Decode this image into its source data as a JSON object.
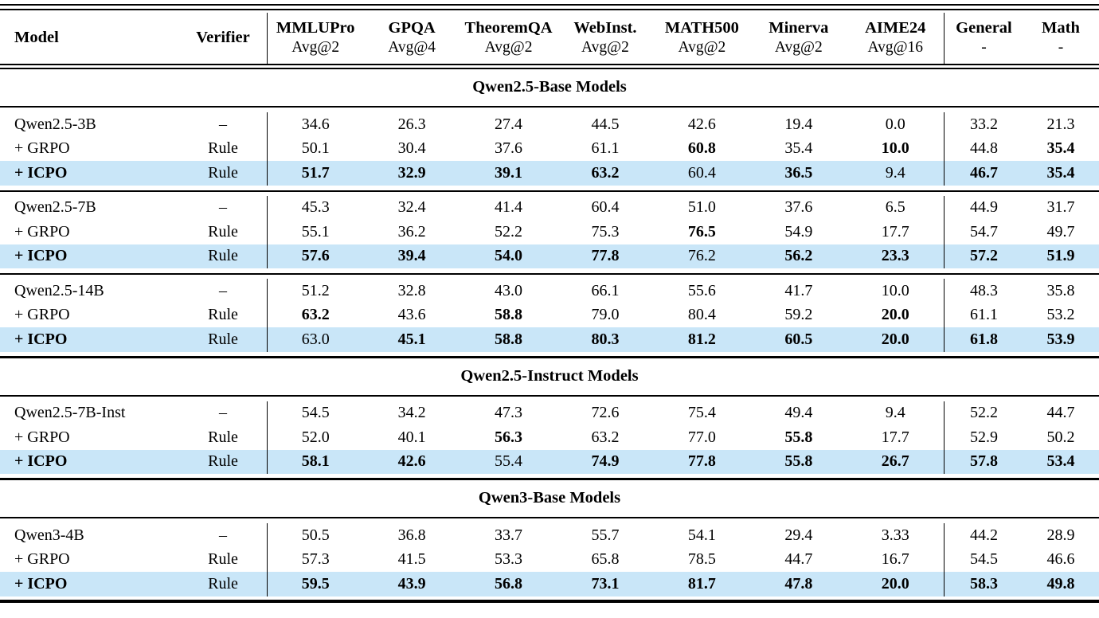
{
  "table": {
    "highlight_color": "#c9e6f8",
    "columns": [
      {
        "label": "Model",
        "sub": ""
      },
      {
        "label": "Verifier",
        "sub": ""
      },
      {
        "label": "MMLUPro",
        "sub": "Avg@2"
      },
      {
        "label": "GPQA",
        "sub": "Avg@4"
      },
      {
        "label": "TheoremQA",
        "sub": "Avg@2"
      },
      {
        "label": "WebInst.",
        "sub": "Avg@2"
      },
      {
        "label": "MATH500",
        "sub": "Avg@2"
      },
      {
        "label": "Minerva",
        "sub": "Avg@2"
      },
      {
        "label": "AIME24",
        "sub": "Avg@16"
      },
      {
        "label": "General",
        "sub": "-"
      },
      {
        "label": "Math",
        "sub": "-"
      }
    ],
    "sections": [
      {
        "title": "Qwen2.5-Base Models",
        "groups": [
          {
            "rows": [
              {
                "model": "Qwen2.5-3B",
                "model_bold": false,
                "verifier": "–",
                "highlight": false,
                "values": [
                  "34.6",
                  "26.3",
                  "27.4",
                  "44.5",
                  "42.6",
                  "19.4",
                  "0.0",
                  "33.2",
                  "21.3"
                ],
                "bold": [
                  0,
                  0,
                  0,
                  0,
                  0,
                  0,
                  0,
                  0,
                  0
                ]
              },
              {
                "model": "+ GRPO",
                "model_bold": false,
                "verifier": "Rule",
                "highlight": false,
                "values": [
                  "50.1",
                  "30.4",
                  "37.6",
                  "61.1",
                  "60.8",
                  "35.4",
                  "10.0",
                  "44.8",
                  "35.4"
                ],
                "bold": [
                  0,
                  0,
                  0,
                  0,
                  1,
                  0,
                  1,
                  0,
                  1
                ]
              },
              {
                "model": "+ ICPO",
                "model_bold": true,
                "verifier": "Rule",
                "highlight": true,
                "values": [
                  "51.7",
                  "32.9",
                  "39.1",
                  "63.2",
                  "60.4",
                  "36.5",
                  "9.4",
                  "46.7",
                  "35.4"
                ],
                "bold": [
                  1,
                  1,
                  1,
                  1,
                  0,
                  1,
                  0,
                  1,
                  1
                ]
              }
            ]
          },
          {
            "rows": [
              {
                "model": "Qwen2.5-7B",
                "model_bold": false,
                "verifier": "–",
                "highlight": false,
                "values": [
                  "45.3",
                  "32.4",
                  "41.4",
                  "60.4",
                  "51.0",
                  "37.6",
                  "6.5",
                  "44.9",
                  "31.7"
                ],
                "bold": [
                  0,
                  0,
                  0,
                  0,
                  0,
                  0,
                  0,
                  0,
                  0
                ]
              },
              {
                "model": "+ GRPO",
                "model_bold": false,
                "verifier": "Rule",
                "highlight": false,
                "values": [
                  "55.1",
                  "36.2",
                  "52.2",
                  "75.3",
                  "76.5",
                  "54.9",
                  "17.7",
                  "54.7",
                  "49.7"
                ],
                "bold": [
                  0,
                  0,
                  0,
                  0,
                  1,
                  0,
                  0,
                  0,
                  0
                ]
              },
              {
                "model": "+ ICPO",
                "model_bold": true,
                "verifier": "Rule",
                "highlight": true,
                "values": [
                  "57.6",
                  "39.4",
                  "54.0",
                  "77.8",
                  "76.2",
                  "56.2",
                  "23.3",
                  "57.2",
                  "51.9"
                ],
                "bold": [
                  1,
                  1,
                  1,
                  1,
                  0,
                  1,
                  1,
                  1,
                  1
                ]
              }
            ]
          },
          {
            "rows": [
              {
                "model": "Qwen2.5-14B",
                "model_bold": false,
                "verifier": "–",
                "highlight": false,
                "values": [
                  "51.2",
                  "32.8",
                  "43.0",
                  "66.1",
                  "55.6",
                  "41.7",
                  "10.0",
                  "48.3",
                  "35.8"
                ],
                "bold": [
                  0,
                  0,
                  0,
                  0,
                  0,
                  0,
                  0,
                  0,
                  0
                ]
              },
              {
                "model": "+ GRPO",
                "model_bold": false,
                "verifier": "Rule",
                "highlight": false,
                "values": [
                  "63.2",
                  "43.6",
                  "58.8",
                  "79.0",
                  "80.4",
                  "59.2",
                  "20.0",
                  "61.1",
                  "53.2"
                ],
                "bold": [
                  1,
                  0,
                  1,
                  0,
                  0,
                  0,
                  1,
                  0,
                  0
                ]
              },
              {
                "model": "+ ICPO",
                "model_bold": true,
                "verifier": "Rule",
                "highlight": true,
                "values": [
                  "63.0",
                  "45.1",
                  "58.8",
                  "80.3",
                  "81.2",
                  "60.5",
                  "20.0",
                  "61.8",
                  "53.9"
                ],
                "bold": [
                  0,
                  1,
                  1,
                  1,
                  1,
                  1,
                  1,
                  1,
                  1
                ]
              }
            ]
          }
        ]
      },
      {
        "title": "Qwen2.5-Instruct Models",
        "groups": [
          {
            "rows": [
              {
                "model": "Qwen2.5-7B-Inst",
                "model_bold": false,
                "verifier": "–",
                "highlight": false,
                "values": [
                  "54.5",
                  "34.2",
                  "47.3",
                  "72.6",
                  "75.4",
                  "49.4",
                  "9.4",
                  "52.2",
                  "44.7"
                ],
                "bold": [
                  0,
                  0,
                  0,
                  0,
                  0,
                  0,
                  0,
                  0,
                  0
                ]
              },
              {
                "model": "+ GRPO",
                "model_bold": false,
                "verifier": "Rule",
                "highlight": false,
                "values": [
                  "52.0",
                  "40.1",
                  "56.3",
                  "63.2",
                  "77.0",
                  "55.8",
                  "17.7",
                  "52.9",
                  "50.2"
                ],
                "bold": [
                  0,
                  0,
                  1,
                  0,
                  0,
                  1,
                  0,
                  0,
                  0
                ]
              },
              {
                "model": "+ ICPO",
                "model_bold": true,
                "verifier": "Rule",
                "highlight": true,
                "values": [
                  "58.1",
                  "42.6",
                  "55.4",
                  "74.9",
                  "77.8",
                  "55.8",
                  "26.7",
                  "57.8",
                  "53.4"
                ],
                "bold": [
                  1,
                  1,
                  0,
                  1,
                  1,
                  1,
                  1,
                  1,
                  1
                ]
              }
            ]
          }
        ]
      },
      {
        "title": "Qwen3-Base Models",
        "groups": [
          {
            "rows": [
              {
                "model": "Qwen3-4B",
                "model_bold": false,
                "verifier": "–",
                "highlight": false,
                "values": [
                  "50.5",
                  "36.8",
                  "33.7",
                  "55.7",
                  "54.1",
                  "29.4",
                  "3.33",
                  "44.2",
                  "28.9"
                ],
                "bold": [
                  0,
                  0,
                  0,
                  0,
                  0,
                  0,
                  0,
                  0,
                  0
                ]
              },
              {
                "model": "+ GRPO",
                "model_bold": false,
                "verifier": "Rule",
                "highlight": false,
                "values": [
                  "57.3",
                  "41.5",
                  "53.3",
                  "65.8",
                  "78.5",
                  "44.7",
                  "16.7",
                  "54.5",
                  "46.6"
                ],
                "bold": [
                  0,
                  0,
                  0,
                  0,
                  0,
                  0,
                  0,
                  0,
                  0
                ]
              },
              {
                "model": "+ ICPO",
                "model_bold": true,
                "verifier": "Rule",
                "highlight": true,
                "values": [
                  "59.5",
                  "43.9",
                  "56.8",
                  "73.1",
                  "81.7",
                  "47.8",
                  "20.0",
                  "58.3",
                  "49.8"
                ],
                "bold": [
                  1,
                  1,
                  1,
                  1,
                  1,
                  1,
                  1,
                  1,
                  1
                ]
              }
            ]
          }
        ]
      }
    ]
  }
}
